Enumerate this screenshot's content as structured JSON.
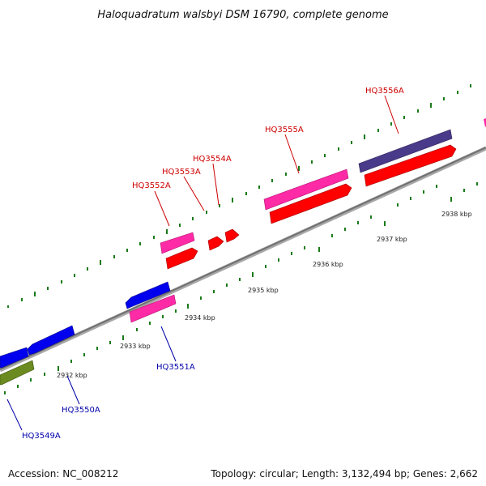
{
  "title": "Haloquadratum walsbyi DSM 16790, complete genome",
  "footer": {
    "accession": "Accession: NC_008212",
    "summary": "Topology: circular; Length: 3,132,494 bp; Genes: 2,662"
  },
  "colors": {
    "backbone": "#808080",
    "tick": "#1a7a1a",
    "forward_label": "#cc0000",
    "reverse_label": "#0000aa",
    "red_cds": "#ff0000",
    "magenta_cds": "#ff2aa6",
    "blue_cds": "#0000ee",
    "purple_cds": "#4a3a8a",
    "olive_cds": "#6b8a1f"
  },
  "scale_ticks": [
    "2932 kbp",
    "2933 kbp",
    "2934 kbp",
    "2935 kbp",
    "2936 kbp",
    "2937 kbp",
    "2938 kbp"
  ],
  "gene_labels": {
    "forward": [
      "HQ3552A",
      "HQ3553A",
      "HQ3554A",
      "HQ3555A",
      "HQ3556A"
    ],
    "reverse": [
      "HQ3549A",
      "HQ3550A",
      "HQ3551A"
    ]
  }
}
